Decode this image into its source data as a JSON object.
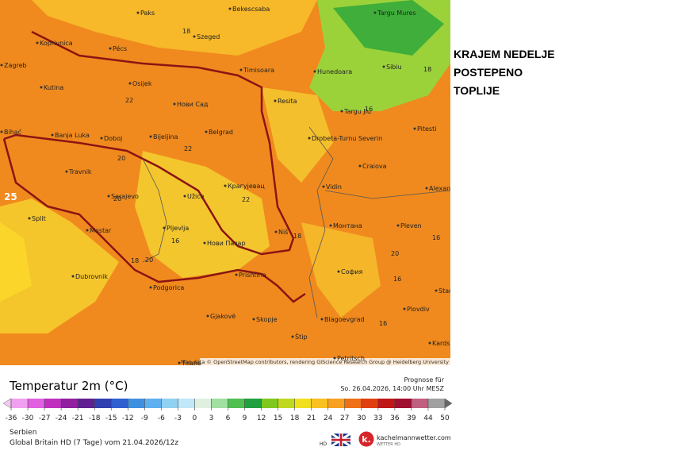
{
  "headline": [
    "KRAJEM NEDELJE",
    "POSTEPENO",
    "TOPLIJE"
  ],
  "map": {
    "attribution": "Map data © OpenStreetMap contributors, rendering GIScience Research Group @ Heidelberg University",
    "cities": [
      "Paks",
      "Bekescsaba",
      "Targu Mures",
      "Koprivnica",
      "Pécs",
      "Szeged",
      "Timisoara",
      "Hunedoara",
      "Sibiu",
      "Zagreb",
      "Osijek",
      "Kutina",
      "Нови Сад",
      "Resita",
      "Targu Jiu",
      "Banja Luka",
      "Doboj",
      "Bijeljina",
      "Belgrad",
      "Drobeta-Turnu Severin",
      "Pitesti",
      "Travnik",
      "Craiova",
      "Sarajevo",
      "Užice",
      "Крагујевац",
      "Vidin",
      "Alexandria",
      "Split",
      "Mostar",
      "Pljevlja",
      "Нови Пазар",
      "Niš",
      "Монтана",
      "Pleven",
      "Dubrovnik",
      "Podgorica",
      "Prishtina",
      "София",
      "Gjakovë",
      "Skopje",
      "Blagoevgrad",
      "Plovdiv",
      "Štip",
      "Tirana",
      "Petritsch",
      "Kardsa",
      "Bihać",
      "Star"
    ],
    "temperatures": [
      18,
      18,
      22,
      22,
      20,
      20,
      22,
      16,
      16,
      20,
      16,
      18,
      20,
      16,
      18,
      16,
      25
    ]
  },
  "legend": {
    "title": "Temperatur 2m (°C)",
    "ticks": [
      -36,
      -30,
      -27,
      -24,
      -21,
      -18,
      -15,
      -12,
      -9,
      -6,
      -3,
      0,
      3,
      6,
      9,
      12,
      15,
      18,
      21,
      24,
      27,
      30,
      33,
      36,
      39,
      44,
      50
    ]
  },
  "forecast": {
    "label": "Prognose für",
    "time": "So. 26.04.2026, 14:00 Uhr MESZ"
  },
  "footer": {
    "region": "Serbien",
    "model": "Global Britain HD (7 Tage) vom 21.04.2026/12z",
    "brand": "kachelmannwetter.com",
    "brand_sub": "WETTER HD",
    "hd": "HD"
  }
}
